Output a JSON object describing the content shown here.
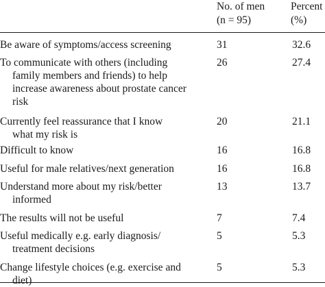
{
  "table": {
    "headers": {
      "count": [
        "No. of men",
        "(n = 95)"
      ],
      "percent": [
        "Percent",
        "(%)"
      ]
    },
    "rows": [
      {
        "lines": [
          "Be aware of symptoms/access screening"
        ],
        "count": "31",
        "percent": "32.6"
      },
      {
        "lines": [
          "To communicate with others (including",
          "family members and friends) to help",
          "increase awareness about prostate cancer",
          "risk"
        ],
        "count": "26",
        "percent": "27.4"
      },
      {
        "lines": [
          "Currently feel reassurance that I know",
          "what my risk is"
        ],
        "count": "20",
        "percent": "21.1"
      },
      {
        "lines": [
          "Difficult to know"
        ],
        "count": "16",
        "percent": "16.8"
      },
      {
        "lines": [
          "Useful for male relatives/next generation"
        ],
        "count": "16",
        "percent": "16.8"
      },
      {
        "lines": [
          "Understand more about my risk/better",
          "informed"
        ],
        "count": "13",
        "percent": "13.7"
      },
      {
        "lines": [
          "The results will not be useful"
        ],
        "count": "7",
        "percent": "7.4"
      },
      {
        "lines": [
          "Useful medically e.g. early diagnosis/",
          "treatment decisions"
        ],
        "count": "5",
        "percent": "5.3"
      },
      {
        "lines": [
          "Change lifestyle choices (e.g. exercise and",
          "diet)"
        ],
        "count": "5",
        "percent": "5.3"
      }
    ]
  }
}
